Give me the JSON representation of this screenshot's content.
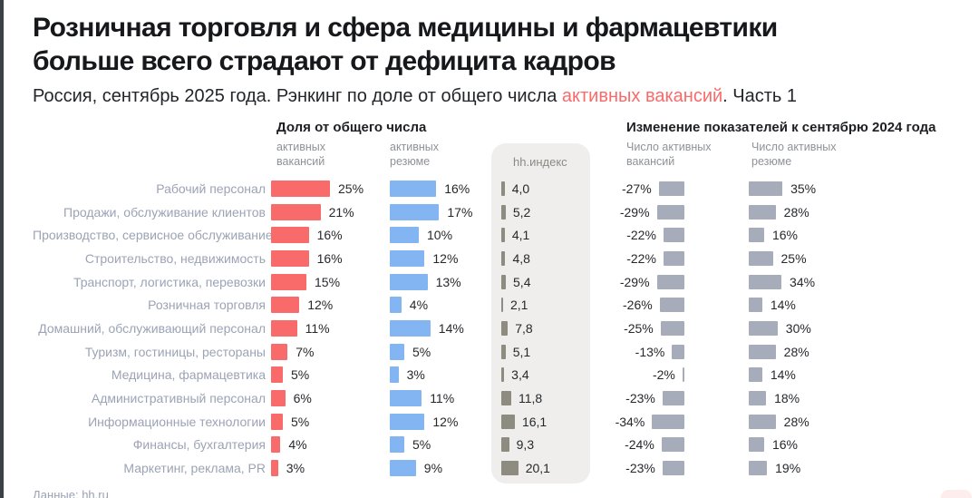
{
  "page": {
    "title_line1": "Розничная торговля и сфера медицины и фармацевтики",
    "title_line2": "больше всего страдают от дефицита кадров",
    "subtitle_prefix": "Россия, сентябрь 2025 года. Рэнкинг по доле от общего числа ",
    "subtitle_accent": "активных вакансий",
    "subtitle_suffix": ". Часть 1",
    "source": "Данные: hh.ru"
  },
  "columns": {
    "share_group": "Доля от общего числа",
    "share_vacancies": "активных\nвакансий",
    "share_resumes": "активных\nрезюме",
    "hh_index": "hh.индекс",
    "change_group": "Изменение показателей к сентябрю 2024 года",
    "change_vacancies": "Число активных\nвакансий",
    "change_resumes": "Число активных\nрезюме"
  },
  "colors": {
    "accent_red": "#f96a6a",
    "bar_blue": "#82b5f1",
    "bar_gray": "#a6acb9",
    "bar_olive": "#8e8c80",
    "panel_bg": "#efeeec",
    "category_text": "#9ba3b5"
  },
  "chart_data": {
    "type": "bar",
    "title": "Розничная торговля и сфера медицины и фармацевтики больше всего страдают от дефицита кадров",
    "subtitle": "Россия, сентябрь 2025 года. Рэнкинг по доле от общего числа активных вакансий. Часть 1",
    "grid": false,
    "legend_position": "top",
    "categories": [
      "Рабочий персонал",
      "Продажи, обслуживание клиентов",
      "Производство, сервисное обслуживание",
      "Строительство, недвижимость",
      "Транспорт, логистика, перевозки",
      "Розничная торговля",
      "Домашний, обслуживающий персонал",
      "Туризм, гостиницы, рестораны",
      "Медицина, фармацевтика",
      "Административный персонал",
      "Информационные технологии",
      "Финансы, бухгалтерия",
      "Маркетинг, реклама, PR"
    ],
    "series": [
      {
        "id": "share_vacancies",
        "name": "Доля от общего числа активных вакансий",
        "unit": "%",
        "values": [
          25,
          21,
          16,
          16,
          15,
          12,
          11,
          7,
          5,
          6,
          5,
          4,
          3
        ]
      },
      {
        "id": "share_resumes",
        "name": "Доля от общего числа активных резюме",
        "unit": "%",
        "values": [
          16,
          17,
          10,
          12,
          13,
          4,
          14,
          5,
          3,
          11,
          12,
          5,
          9
        ]
      },
      {
        "id": "hh_index",
        "name": "hh.индекс",
        "values": [
          4.0,
          5.2,
          4.1,
          4.8,
          5.4,
          2.1,
          7.8,
          5.1,
          3.4,
          11.8,
          16.1,
          9.3,
          20.1
        ],
        "labels": [
          "4,0",
          "5,2",
          "4,1",
          "4,8",
          "5,4",
          "2,1",
          "7,8",
          "5,1",
          "3,4",
          "11,8",
          "16,1",
          "9,3",
          "20,1"
        ]
      },
      {
        "id": "change_vacancies",
        "name": "Изменение числа активных вакансий к сентябрю 2024 года",
        "unit": "%",
        "values": [
          -27,
          -29,
          -22,
          -22,
          -29,
          -26,
          -25,
          -13,
          -2,
          -23,
          -34,
          -24,
          -23
        ]
      },
      {
        "id": "change_resumes",
        "name": "Изменение числа активных резюме к сентябрю 2024 года",
        "unit": "%",
        "values": [
          35,
          28,
          16,
          25,
          34,
          14,
          30,
          28,
          14,
          18,
          28,
          16,
          19
        ]
      }
    ]
  }
}
